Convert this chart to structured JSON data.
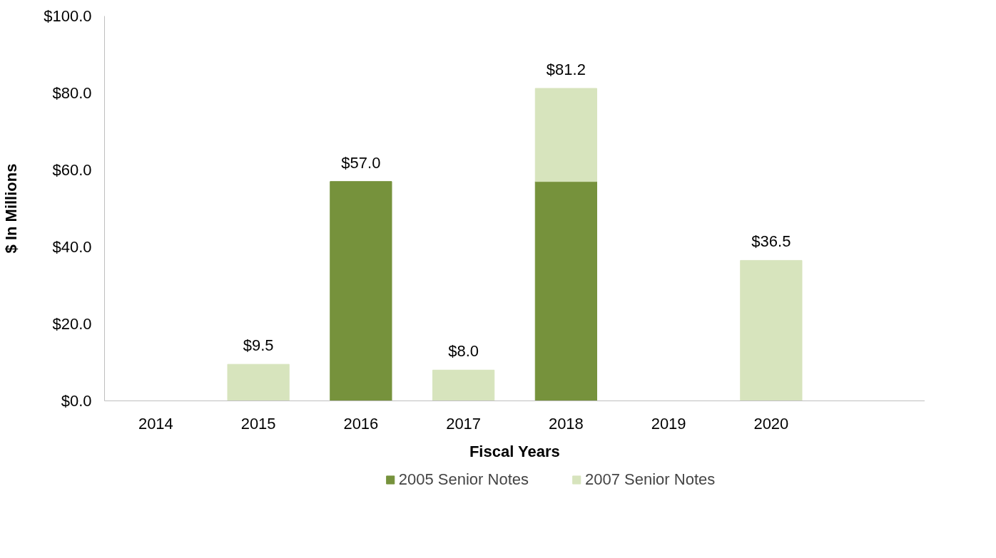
{
  "chart_data": {
    "type": "bar",
    "stacked": true,
    "ylabel": "$ In Millions",
    "xlabel": "Fiscal Years",
    "categories": [
      "2014",
      "2015",
      "2016",
      "2017",
      "2018",
      "2019",
      "2020",
      null
    ],
    "series": [
      {
        "name": "2005 Senior Notes",
        "color": "#76923c",
        "values": [
          null,
          null,
          57.0,
          null,
          57.0,
          null,
          null,
          null
        ]
      },
      {
        "name": "2007 Senior Notes",
        "color": "#d7e4bd",
        "values": [
          null,
          9.5,
          null,
          8.0,
          24.2,
          null,
          36.5,
          null
        ]
      }
    ],
    "totals": [
      null,
      "$9.5",
      "$57.0",
      "$8.0",
      "$81.2",
      null,
      "$36.5",
      null
    ],
    "ylim": [
      0,
      100
    ],
    "yticks": [
      {
        "value": 0,
        "label": "$0.0"
      },
      {
        "value": 20,
        "label": "$20.0"
      },
      {
        "value": 40,
        "label": "$40.0"
      },
      {
        "value": 60,
        "label": "$60.0"
      },
      {
        "value": 80,
        "label": "$80.0"
      },
      {
        "value": 100,
        "label": "$100.0"
      }
    ],
    "grid": false,
    "legend": "bottom"
  }
}
